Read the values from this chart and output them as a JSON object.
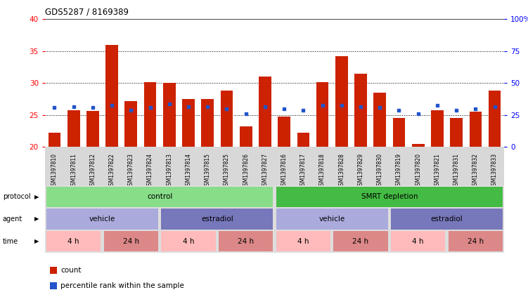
{
  "title": "GDS5287 / 8169389",
  "samples": [
    "GSM1397810",
    "GSM1397811",
    "GSM1397812",
    "GSM1397822",
    "GSM1397823",
    "GSM1397824",
    "GSM1397813",
    "GSM1397814",
    "GSM1397815",
    "GSM1397825",
    "GSM1397826",
    "GSM1397827",
    "GSM1397816",
    "GSM1397817",
    "GSM1397818",
    "GSM1397828",
    "GSM1397829",
    "GSM1397830",
    "GSM1397819",
    "GSM1397820",
    "GSM1397821",
    "GSM1397831",
    "GSM1397832",
    "GSM1397833"
  ],
  "bar_heights": [
    22.2,
    25.8,
    25.7,
    36.0,
    27.2,
    30.2,
    30.0,
    27.5,
    27.5,
    28.8,
    23.2,
    31.0,
    24.8,
    22.2,
    30.2,
    34.2,
    31.5,
    28.5,
    24.5,
    20.5,
    25.8,
    24.5,
    25.5,
    28.8
  ],
  "blue_sq_vals": [
    26.2,
    26.3,
    26.2,
    26.5,
    25.8,
    26.2,
    26.8,
    26.3,
    26.3,
    26.0,
    25.2,
    26.3,
    26.0,
    25.8,
    26.5,
    26.5,
    26.3,
    26.2,
    25.8,
    25.2,
    26.5,
    25.8,
    26.0,
    26.3
  ],
  "bar_color": "#cc2200",
  "blue_color": "#2255cc",
  "ylim_left": [
    20,
    40
  ],
  "ylim_right": [
    0,
    100
  ],
  "yticks_left": [
    20,
    25,
    30,
    35,
    40
  ],
  "yticks_right": [
    0,
    25,
    50,
    75,
    100
  ],
  "ytick_labels_right": [
    "0",
    "25",
    "50",
    "75",
    "100%"
  ],
  "grid_vals": [
    25,
    30,
    35
  ],
  "bg_color": "#ffffff",
  "plot_bg": "#ffffff",
  "sample_band_bg": "#d8d8d8",
  "protocol_groups": [
    {
      "label": "control",
      "start": 0,
      "end": 12,
      "color": "#88dd88"
    },
    {
      "label": "SMRT depletion",
      "start": 12,
      "end": 24,
      "color": "#44bb44"
    }
  ],
  "agent_groups": [
    {
      "label": "vehicle",
      "start": 0,
      "end": 6,
      "color": "#aaaadd"
    },
    {
      "label": "estradiol",
      "start": 6,
      "end": 12,
      "color": "#7777bb"
    },
    {
      "label": "vehicle",
      "start": 12,
      "end": 18,
      "color": "#aaaadd"
    },
    {
      "label": "estradiol",
      "start": 18,
      "end": 24,
      "color": "#7777bb"
    }
  ],
  "time_groups": [
    {
      "label": "4 h",
      "start": 0,
      "end": 3,
      "color": "#ffbbbb"
    },
    {
      "label": "24 h",
      "start": 3,
      "end": 6,
      "color": "#dd8888"
    },
    {
      "label": "4 h",
      "start": 6,
      "end": 9,
      "color": "#ffbbbb"
    },
    {
      "label": "24 h",
      "start": 9,
      "end": 12,
      "color": "#dd8888"
    },
    {
      "label": "4 h",
      "start": 12,
      "end": 15,
      "color": "#ffbbbb"
    },
    {
      "label": "24 h",
      "start": 15,
      "end": 18,
      "color": "#dd8888"
    },
    {
      "label": "4 h",
      "start": 18,
      "end": 21,
      "color": "#ffbbbb"
    },
    {
      "label": "24 h",
      "start": 21,
      "end": 24,
      "color": "#dd8888"
    }
  ],
  "row_labels": [
    "protocol",
    "agent",
    "time"
  ],
  "legend_items": [
    {
      "label": "count",
      "color": "#cc2200"
    },
    {
      "label": "percentile rank within the sample",
      "color": "#2255cc"
    }
  ]
}
